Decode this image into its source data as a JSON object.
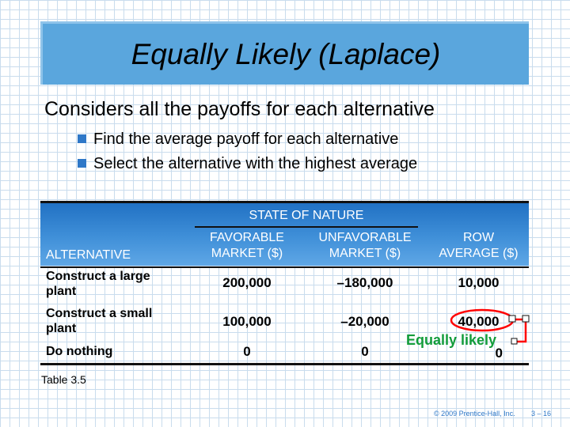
{
  "slide": {
    "title": "Equally Likely (Laplace)",
    "main_point": "Considers all the payoffs for each alternative",
    "bullets": [
      "Find the average payoff for each alternative",
      "Select the alternative with the highest average"
    ]
  },
  "table": {
    "state_of_nature": "STATE OF NATURE",
    "headers": {
      "alternative": "ALTERNATIVE",
      "favorable_1": "FAVORABLE",
      "favorable_2": "MARKET ($)",
      "unfavorable_1": "UNFAVORABLE",
      "unfavorable_2": "MARKET ($)",
      "row_avg_1": "ROW",
      "row_avg_2": "AVERAGE ($)"
    },
    "rows": [
      {
        "alt_line1": "Construct a large",
        "alt_line2": "plant",
        "favorable": "200,000",
        "unfavorable": "–180,000",
        "row_average": "10,000"
      },
      {
        "alt_line1": "Construct a small",
        "alt_line2": "plant",
        "favorable": "100,000",
        "unfavorable": "–20,000",
        "row_average": "40,000"
      },
      {
        "alt_line1": "Do nothing",
        "alt_line2": "",
        "favorable": "0",
        "unfavorable": "0",
        "row_average": "0"
      }
    ],
    "caption": "Table 3.5"
  },
  "annotation": {
    "label": "Equally likely",
    "color": "#ff0000",
    "label_color": "#129c3a"
  },
  "footer": {
    "copyright": "© 2009 Prentice-Hall, Inc.",
    "page": "3 – 16"
  },
  "colors": {
    "title_fill": "#5aa6dd",
    "header_fill": "#1f6fc2",
    "bullet": "#2f78c8",
    "grid": "#c9dced"
  }
}
